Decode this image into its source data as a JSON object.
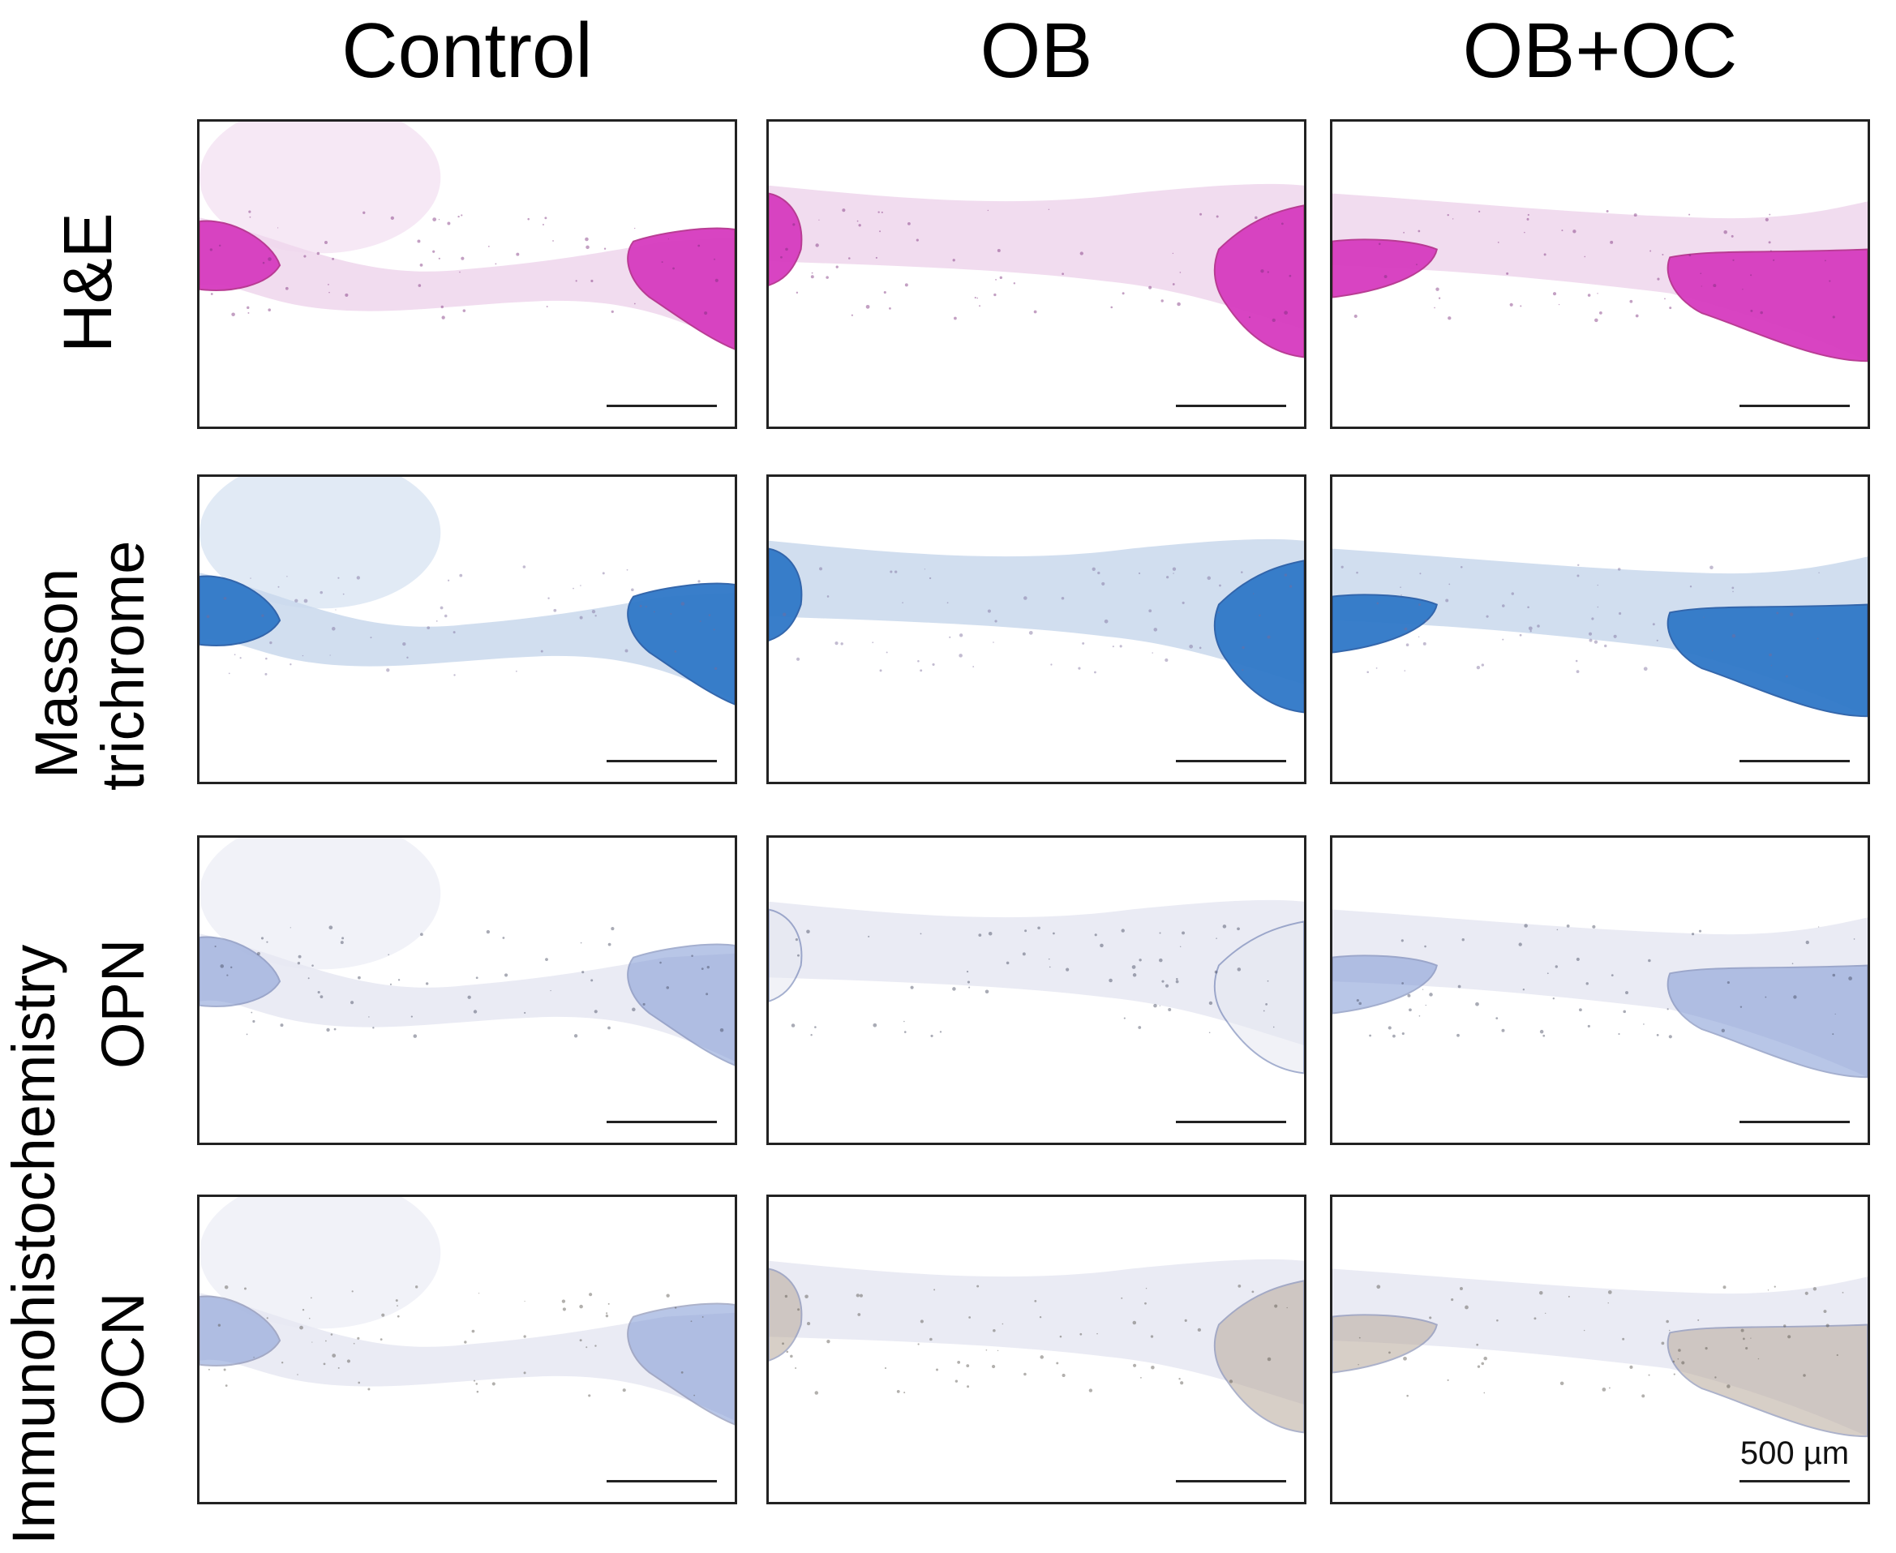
{
  "columns": [
    "Control",
    "OB",
    "OB+OC"
  ],
  "rows": {
    "he": "H&E",
    "masson_1": "Masson",
    "masson_2": "trichrome",
    "ihc": "Immunohistochemistry",
    "opn": "OPN",
    "ocn": "OCN"
  },
  "scale_label": "500 µm",
  "stain_colors": {
    "he_bone": "#d63bbf",
    "he_tissue": "#efd6ec",
    "masson_bone": "#2f78c8",
    "masson_tissue": "#c9d8ec",
    "ihc_blue": "#7f98d4",
    "ihc_tissue": "#e6e8f2",
    "ihc_brown": "#b8a89a"
  }
}
